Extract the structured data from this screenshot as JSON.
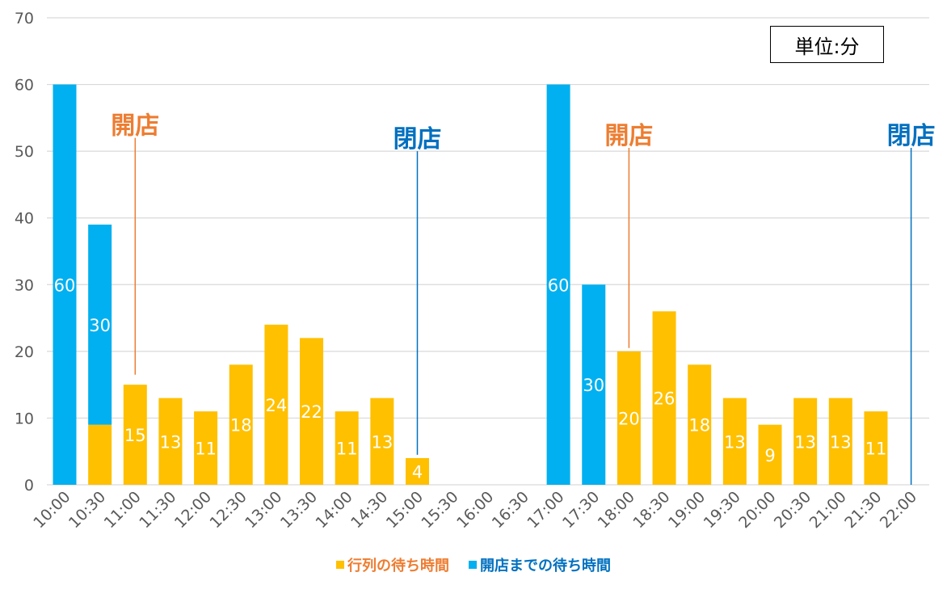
{
  "chart_data": {
    "type": "bar",
    "stacked": true,
    "categories": [
      "10:00",
      "10:30",
      "11:00",
      "11:30",
      "12:00",
      "12:30",
      "13:00",
      "13:30",
      "14:00",
      "14:30",
      "15:00",
      "15:30",
      "16:00",
      "16:30",
      "17:00",
      "17:30",
      "18:00",
      "18:30",
      "19:00",
      "19:30",
      "20:00",
      "20:30",
      "21:00",
      "21:30",
      "22:00"
    ],
    "series": [
      {
        "name": "行列の待ち時間",
        "color": "#FFC000",
        "values": [
          0,
          9,
          15,
          13,
          11,
          18,
          24,
          22,
          11,
          13,
          4,
          0,
          0,
          0,
          0,
          0,
          20,
          26,
          18,
          13,
          9,
          13,
          13,
          11,
          0
        ],
        "labels": [
          "",
          "",
          "15",
          "13",
          "11",
          "18",
          "24",
          "22",
          "11",
          "13",
          "4",
          "",
          "",
          "",
          "",
          "",
          "20",
          "26",
          "18",
          "13",
          "9",
          "13",
          "13",
          "11",
          ""
        ]
      },
      {
        "name": "開店までの待ち時間",
        "color": "#00B0F0",
        "values": [
          60,
          30,
          0,
          0,
          0,
          0,
          0,
          0,
          0,
          0,
          0,
          0,
          0,
          0,
          60,
          30,
          0,
          0,
          0,
          0,
          0,
          0,
          0,
          0,
          0
        ],
        "labels": [
          "60",
          "30",
          "",
          "",
          "",
          "",
          "",
          "",
          "",
          "",
          "",
          "",
          "",
          "",
          "60",
          "30",
          "",
          "",
          "",
          "",
          "",
          "",
          "",
          "",
          ""
        ]
      }
    ],
    "ylim": [
      0,
      70
    ],
    "yticks": [
      "0",
      "10",
      "20",
      "30",
      "40",
      "50",
      "60",
      "70"
    ],
    "grid": true,
    "annotations": [
      {
        "text": "開店",
        "category": "11:00",
        "color": "#ED7D31",
        "value_top": 52,
        "value_bottom": 16.5
      },
      {
        "text": "閉店",
        "category": "15:00",
        "color": "#0070C0",
        "value_top": 50,
        "value_bottom": 4.5
      },
      {
        "text": "開店",
        "category": "18:00",
        "color": "#ED7D31",
        "value_top": 50.5,
        "value_bottom": 20.5
      },
      {
        "text": "閉店",
        "category": "22:00",
        "color": "#0070C0",
        "value_top": 50.5,
        "value_bottom": 0
      }
    ],
    "unit_label": "単位:分",
    "legend_position": "bottom"
  }
}
